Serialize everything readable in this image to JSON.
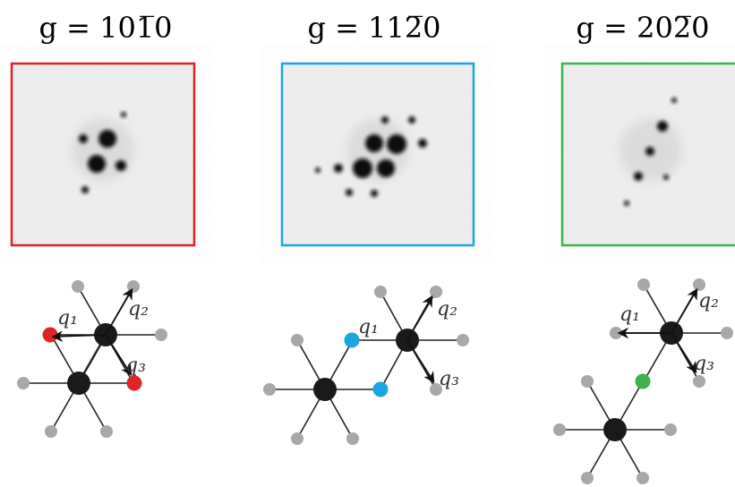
{
  "panels": [
    {
      "title": "g = 101̅0",
      "labels": [
        "q₁",
        "q₂",
        "q₃"
      ]
    },
    {
      "title": "g = 112̅0",
      "labels": [
        "q₁",
        "q₂",
        "q₃"
      ]
    },
    {
      "title": "g = 202̅0",
      "labels": [
        "q₁",
        "q₂",
        "q₃"
      ]
    }
  ]
}
